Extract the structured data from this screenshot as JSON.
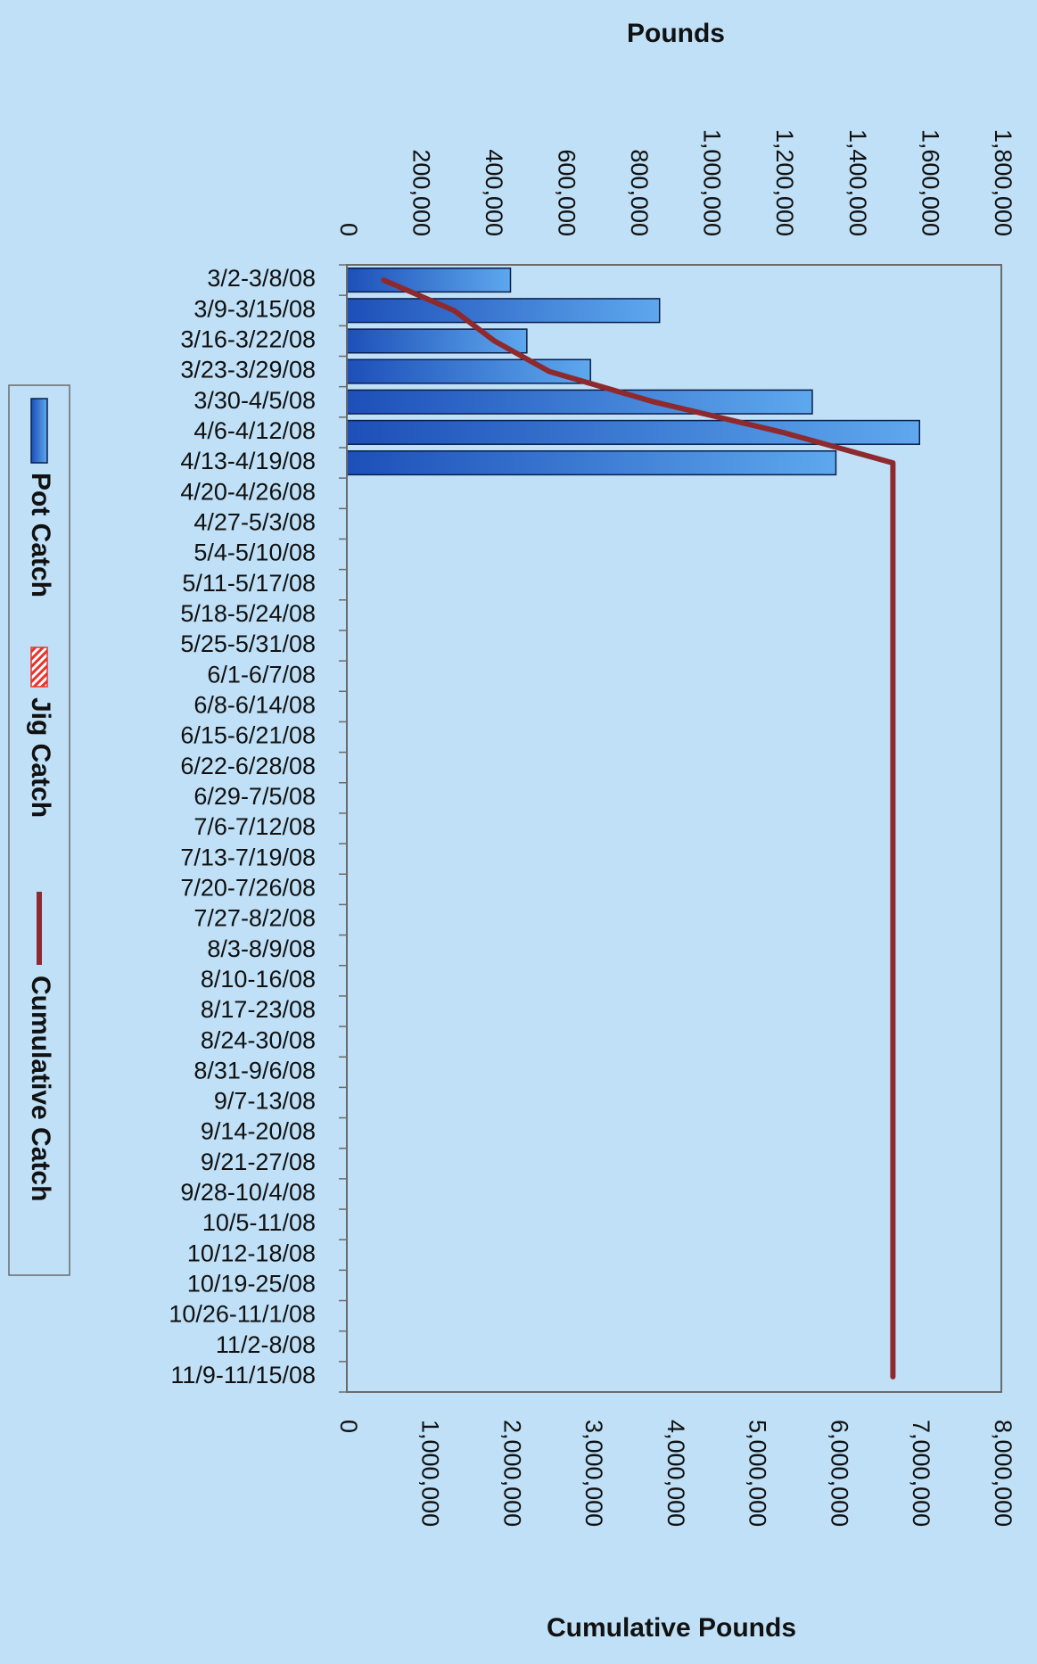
{
  "colors": {
    "background": "#bfe0f6",
    "plot_border": "#6b6b6b",
    "pot_bar_dark": "#1d4fb8",
    "pot_bar_light": "#5ea8ee",
    "jig_hatch": "#e8342a",
    "cumulative_line": "#8e2a2e",
    "text": "#111111"
  },
  "chart_data": {
    "type": "bar",
    "orientation": "horizontal",
    "title": "",
    "categories": [
      "3/2-3/8/08",
      "3/9-3/15/08",
      "3/16-3/22/08",
      "3/23-3/29/08",
      "3/30-4/5/08",
      "4/6-4/12/08",
      "4/13-4/19/08",
      "4/20-4/26/08",
      "4/27-5/3/08",
      "5/4-5/10/08",
      "5/11-5/17/08",
      "5/18-5/24/08",
      "5/25-5/31/08",
      "6/1-6/7/08",
      "6/8-6/14/08",
      "6/15-6/21/08",
      "6/22-6/28/08",
      "6/29-7/5/08",
      "7/6-7/12/08",
      "7/13-7/19/08",
      "7/20-7/26/08",
      "7/27-8/2/08",
      "8/3-8/9/08",
      "8/10-16/08",
      "8/17-23/08",
      "8/24-30/08",
      "8/31-9/6/08",
      "9/7-13/08",
      "9/14-20/08",
      "9/21-27/08",
      "9/28-10/4/08",
      "10/5-11/08",
      "10/12-18/08",
      "10/19-25/08",
      "10/26-11/1/08",
      "11/2-8/08",
      "11/9-11/15/08"
    ],
    "primary_axis": {
      "label": "Pounds",
      "ticks": [
        "0",
        "200,000",
        "400,000",
        "600,000",
        "800,000",
        "1,000,000",
        "1,200,000",
        "1,400,000",
        "1,600,000",
        "1,800,000"
      ],
      "range": [
        0,
        1800000
      ]
    },
    "secondary_axis": {
      "label": "Cumulative Pounds",
      "ticks": [
        "0",
        "1,000,000",
        "2,000,000",
        "3,000,000",
        "4,000,000",
        "5,000,000",
        "6,000,000",
        "7,000,000",
        "8,000,000"
      ],
      "range": [
        0,
        8000000
      ]
    },
    "series": [
      {
        "name": "Pot Catch",
        "kind": "bar",
        "axis": "primary",
        "values": [
          450000,
          860000,
          495000,
          670000,
          1280000,
          1575000,
          1345000,
          0,
          0,
          0,
          0,
          0,
          0,
          0,
          0,
          0,
          0,
          0,
          0,
          0,
          0,
          0,
          0,
          0,
          0,
          0,
          0,
          0,
          0,
          0,
          0,
          0,
          0,
          0,
          0,
          0,
          0
        ]
      },
      {
        "name": "Jig Catch",
        "kind": "bar",
        "axis": "primary",
        "values": [
          0,
          0,
          0,
          0,
          0,
          0,
          0,
          0,
          0,
          0,
          0,
          0,
          0,
          0,
          0,
          0,
          0,
          0,
          0,
          0,
          0,
          0,
          0,
          0,
          0,
          0,
          0,
          0,
          0,
          0,
          0,
          0,
          0,
          0,
          0,
          0,
          0
        ]
      },
      {
        "name": "Cumulative Catch",
        "kind": "line",
        "axis": "secondary",
        "values": [
          450000,
          1310000,
          1805000,
          2475000,
          3755000,
          5330000,
          6675000,
          6675000,
          6675000,
          6675000,
          6675000,
          6675000,
          6675000,
          6675000,
          6675000,
          6675000,
          6675000,
          6675000,
          6675000,
          6675000,
          6675000,
          6675000,
          6675000,
          6675000,
          6675000,
          6675000,
          6675000,
          6675000,
          6675000,
          6675000,
          6675000,
          6675000,
          6675000,
          6675000,
          6675000,
          6675000,
          6675000
        ]
      }
    ],
    "legend": {
      "placement": "left",
      "entries": [
        "Pot Catch",
        "Jig Catch",
        "Cumulative Catch"
      ]
    },
    "grid": false
  }
}
